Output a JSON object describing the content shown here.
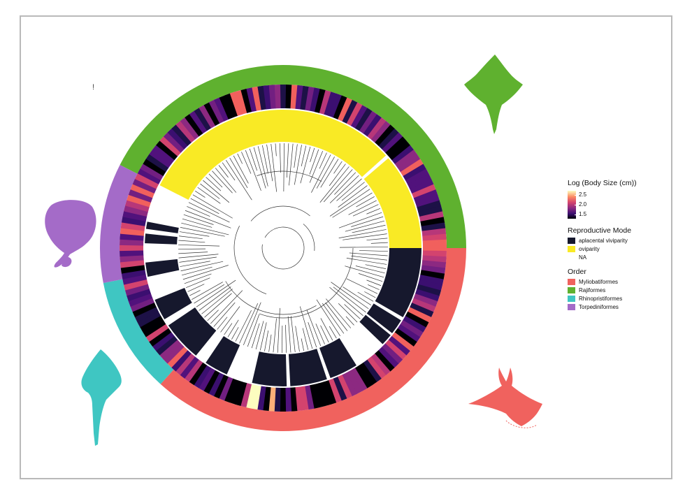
{
  "legend": {
    "size": {
      "title": "Log (Body Size (cm))",
      "ticks": [
        "2.5",
        "2.0",
        "1.5"
      ]
    },
    "mode": {
      "title": "Reproductive Mode",
      "items": [
        {
          "label": "aplacental viviparity",
          "color": "#16182d"
        },
        {
          "label": "oviparity",
          "color": "#f9ea25"
        },
        {
          "label": "NA",
          "color": "#ffffff"
        }
      ]
    },
    "order": {
      "title": "Order",
      "items": [
        {
          "label": "Myliobatiformes",
          "color": "#f0625e"
        },
        {
          "label": "Rajiformes",
          "color": "#5fb12f"
        },
        {
          "label": "Rhinopristiformes",
          "color": "#3fc6c2"
        },
        {
          "label": "Torpediniformes",
          "color": "#a46bc8"
        }
      ]
    }
  },
  "marker": "!",
  "silhouettes": [
    {
      "name": "skate",
      "color": "#5fb12f"
    },
    {
      "name": "electric-ray",
      "color": "#a46bc8"
    },
    {
      "name": "guitarfish",
      "color": "#3fc6c2"
    },
    {
      "name": "manta-ray",
      "color": "#f0625e"
    }
  ]
}
